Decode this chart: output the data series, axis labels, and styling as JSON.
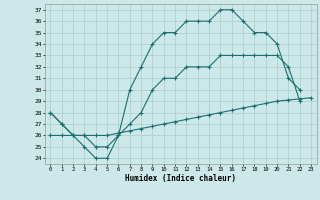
{
  "xlabel": "Humidex (Indice chaleur)",
  "bg_color": "#cce8e8",
  "line_color": "#1a7070",
  "grid_color": "#b0d0d0",
  "xlim": [
    -0.5,
    23.5
  ],
  "ylim": [
    23.5,
    37.5
  ],
  "yticks": [
    24,
    25,
    26,
    27,
    28,
    29,
    30,
    31,
    32,
    33,
    34,
    35,
    36,
    37
  ],
  "xticks": [
    0,
    1,
    2,
    3,
    4,
    5,
    6,
    7,
    8,
    9,
    10,
    11,
    12,
    13,
    14,
    15,
    16,
    17,
    18,
    19,
    20,
    21,
    22,
    23
  ],
  "line1_x": [
    0,
    1,
    2,
    3,
    4,
    5,
    6,
    7,
    8,
    9,
    10,
    11,
    12,
    13,
    14,
    15,
    16,
    17,
    18,
    19,
    20,
    21,
    22
  ],
  "line1_y": [
    28,
    27,
    26,
    25,
    24,
    24,
    26,
    30,
    32,
    34,
    35,
    35,
    36,
    36,
    36,
    37,
    37,
    36,
    35,
    35,
    34,
    31,
    30
  ],
  "line2_x": [
    0,
    1,
    2,
    3,
    4,
    5,
    6,
    7,
    8,
    9,
    10,
    11,
    12,
    13,
    14,
    15,
    16,
    17,
    18,
    19,
    20,
    21,
    22
  ],
  "line2_y": [
    28,
    27,
    26,
    26,
    25,
    25,
    26,
    27,
    28,
    30,
    31,
    31,
    32,
    32,
    32,
    33,
    33,
    33,
    33,
    33,
    33,
    32,
    29
  ],
  "line3_x": [
    0,
    1,
    2,
    3,
    4,
    5,
    6,
    7,
    8,
    9,
    10,
    11,
    12,
    13,
    14,
    15,
    16,
    17,
    18,
    19,
    20,
    21,
    22,
    23
  ],
  "line3_y": [
    26,
    26,
    26,
    26,
    26,
    26,
    26.2,
    26.4,
    26.6,
    26.8,
    27,
    27.2,
    27.4,
    27.6,
    27.8,
    28,
    28.2,
    28.4,
    28.6,
    28.8,
    29,
    29.1,
    29.2,
    29.3
  ]
}
